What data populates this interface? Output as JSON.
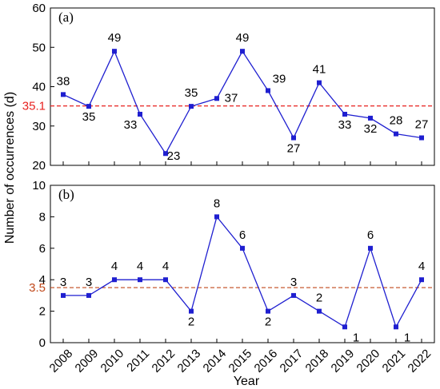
{
  "figure": {
    "ylabel": "Number of occurrences (d)",
    "xlabel": "Year"
  },
  "chart_data": [
    {
      "type": "line",
      "panel_label": "(a)",
      "x": [
        "2008",
        "2009",
        "2010",
        "2011",
        "2012",
        "2013",
        "2014",
        "2015",
        "2016",
        "2017",
        "2018",
        "2019",
        "2020",
        "2021",
        "2022"
      ],
      "values": [
        38,
        35,
        49,
        33,
        23,
        35,
        37,
        49,
        39,
        27,
        41,
        33,
        32,
        28,
        27
      ],
      "ylim": [
        20,
        60
      ],
      "yticks": [
        "20",
        "30",
        "40",
        "50",
        "60"
      ],
      "reference_line": {
        "value": 35.1,
        "label": "35.1",
        "color": "#e8211f"
      },
      "series_color": "#1f1fd0"
    },
    {
      "type": "line",
      "panel_label": "(b)",
      "x": [
        "2008",
        "2009",
        "2010",
        "2011",
        "2012",
        "2013",
        "2014",
        "2015",
        "2016",
        "2017",
        "2018",
        "2019",
        "2020",
        "2021",
        "2022"
      ],
      "values": [
        3,
        3,
        4,
        4,
        4,
        2,
        8,
        6,
        2,
        3,
        2,
        1,
        6,
        1,
        4
      ],
      "ylim": [
        0,
        10
      ],
      "yticks": [
        "0",
        "2",
        "4",
        "6",
        "8",
        "10"
      ],
      "reference_line": {
        "value": 3.5,
        "label": "3.5",
        "color": "#c0481a"
      },
      "series_color": "#1f1fd0"
    }
  ]
}
